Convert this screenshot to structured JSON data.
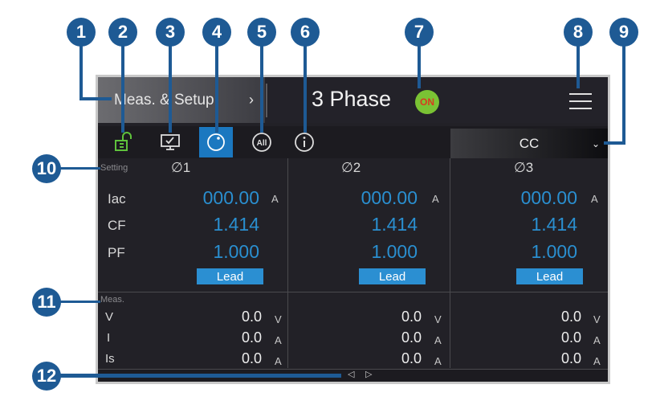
{
  "header": {
    "mode_button": "Meas. & Setup",
    "mode_chevron": "›",
    "title": "3 Phase",
    "output_status": "ON",
    "menu_icon": "hamburger-icon"
  },
  "toolbar": {
    "icons": [
      "unlock-icon",
      "monitor-check-icon",
      "knob-icon",
      "all-icon",
      "info-icon"
    ],
    "active_index": 2,
    "mode_select": "CC",
    "mode_chevron": "⌄"
  },
  "setting": {
    "label": "Setting",
    "rows": [
      "Iac",
      "CF",
      "PF"
    ],
    "phases": [
      {
        "name": "∅1",
        "iac": "000.00",
        "iac_unit": "A",
        "cf": "1.414",
        "pf": "1.000",
        "lead": "Lead"
      },
      {
        "name": "∅2",
        "iac": "000.00",
        "iac_unit": "A",
        "cf": "1.414",
        "pf": "1.000",
        "lead": "Lead"
      },
      {
        "name": "∅3",
        "iac": "000.00",
        "iac_unit": "A",
        "cf": "1.414",
        "pf": "1.000",
        "lead": "Lead"
      }
    ]
  },
  "meas": {
    "label": "Meas.",
    "rows": [
      "V",
      "I",
      "Is"
    ],
    "phases": [
      {
        "v": "0.0",
        "v_unit": "V",
        "i": "0.0",
        "i_unit": "A",
        "is": "0.0",
        "is_unit": "A"
      },
      {
        "v": "0.0",
        "v_unit": "V",
        "i": "0.0",
        "i_unit": "A",
        "is": "0.0",
        "is_unit": "A"
      },
      {
        "v": "0.0",
        "v_unit": "V",
        "i": "0.0",
        "i_unit": "A",
        "is": "0.0",
        "is_unit": "A"
      }
    ]
  },
  "nav": {
    "prev": "◁",
    "next": "▷"
  },
  "callouts": [
    "1",
    "2",
    "3",
    "4",
    "5",
    "6",
    "7",
    "8",
    "9",
    "10",
    "11",
    "12"
  ],
  "colors": {
    "accent": "#2a8fd0",
    "callout": "#1e5a94",
    "on": "#7ac234"
  }
}
